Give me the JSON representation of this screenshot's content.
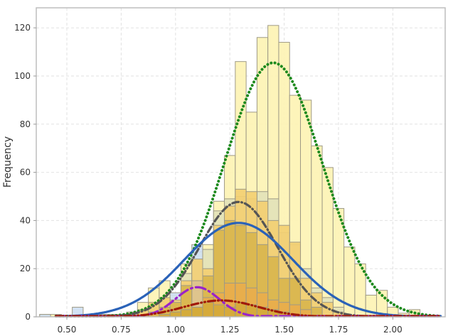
{
  "chart_data": {
    "type": "bar",
    "subtype": "overlaid histogram with fitted normal curves",
    "title": "",
    "xlabel": "",
    "ylabel": "Frequency",
    "xlim": [
      0.36,
      2.24
    ],
    "ylim": [
      0,
      128
    ],
    "x_ticks": [
      "0.50",
      "0.75",
      "1.00",
      "1.25",
      "1.50",
      "1.75",
      "2.00"
    ],
    "y_ticks": [
      "0",
      "20",
      "40",
      "60",
      "80",
      "100",
      "120"
    ],
    "grid": true,
    "legend": "none",
    "bin_width": 0.05,
    "histograms": [
      {
        "name": "group_pale_yellow",
        "color": "#fdf3b4",
        "bins": [
          {
            "x": 0.4,
            "y": 1
          },
          {
            "x": 0.45,
            "y": 1
          },
          {
            "x": 0.6,
            "y": 1
          },
          {
            "x": 0.65,
            "y": 1
          },
          {
            "x": 0.7,
            "y": 1
          },
          {
            "x": 0.75,
            "y": 1
          },
          {
            "x": 0.8,
            "y": 2
          },
          {
            "x": 0.85,
            "y": 6
          },
          {
            "x": 0.9,
            "y": 12
          },
          {
            "x": 0.95,
            "y": 15
          },
          {
            "x": 1.0,
            "y": 9
          },
          {
            "x": 1.05,
            "y": 22
          },
          {
            "x": 1.1,
            "y": 27
          },
          {
            "x": 1.15,
            "y": 30
          },
          {
            "x": 1.2,
            "y": 48
          },
          {
            "x": 1.25,
            "y": 67
          },
          {
            "x": 1.3,
            "y": 106
          },
          {
            "x": 1.35,
            "y": 85
          },
          {
            "x": 1.4,
            "y": 116
          },
          {
            "x": 1.45,
            "y": 121
          },
          {
            "x": 1.5,
            "y": 114
          },
          {
            "x": 1.55,
            "y": 92
          },
          {
            "x": 1.6,
            "y": 90
          },
          {
            "x": 1.65,
            "y": 71
          },
          {
            "x": 1.7,
            "y": 62
          },
          {
            "x": 1.75,
            "y": 45
          },
          {
            "x": 1.8,
            "y": 29
          },
          {
            "x": 1.85,
            "y": 22
          },
          {
            "x": 1.9,
            "y": 9
          },
          {
            "x": 1.95,
            "y": 11
          },
          {
            "x": 2.0,
            "y": 4
          },
          {
            "x": 2.05,
            "y": 1.5
          },
          {
            "x": 2.1,
            "y": 3
          }
        ]
      },
      {
        "name": "group_light_blue",
        "color": "#cfe0f3",
        "bins": [
          {
            "x": 0.4,
            "y": 1
          },
          {
            "x": 0.55,
            "y": 4
          },
          {
            "x": 0.7,
            "y": 1
          },
          {
            "x": 1.0,
            "y": 10
          },
          {
            "x": 1.1,
            "y": 30
          }
        ]
      },
      {
        "name": "group_sage",
        "color": "#e3e2b8",
        "bins": [
          {
            "x": 1.05,
            "y": 18
          },
          {
            "x": 1.15,
            "y": 28
          },
          {
            "x": 1.2,
            "y": 44
          },
          {
            "x": 1.25,
            "y": 49
          },
          {
            "x": 1.3,
            "y": 50
          },
          {
            "x": 1.35,
            "y": 49
          },
          {
            "x": 1.4,
            "y": 52
          },
          {
            "x": 1.45,
            "y": 49
          },
          {
            "x": 1.5,
            "y": 35
          },
          {
            "x": 1.55,
            "y": 30
          },
          {
            "x": 1.6,
            "y": 20
          },
          {
            "x": 1.65,
            "y": 12
          },
          {
            "x": 1.7,
            "y": 8
          },
          {
            "x": 1.75,
            "y": 4
          }
        ]
      },
      {
        "name": "group_gold",
        "color": "#f3cf72",
        "bins": [
          {
            "x": 0.85,
            "y": 3
          },
          {
            "x": 0.9,
            "y": 6
          },
          {
            "x": 0.95,
            "y": 8
          },
          {
            "x": 1.0,
            "y": 7
          },
          {
            "x": 1.05,
            "y": 15
          },
          {
            "x": 1.1,
            "y": 24
          },
          {
            "x": 1.15,
            "y": 20
          },
          {
            "x": 1.2,
            "y": 38
          },
          {
            "x": 1.25,
            "y": 46
          },
          {
            "x": 1.3,
            "y": 53
          },
          {
            "x": 1.35,
            "y": 52
          },
          {
            "x": 1.4,
            "y": 48
          },
          {
            "x": 1.45,
            "y": 40
          },
          {
            "x": 1.5,
            "y": 38
          },
          {
            "x": 1.55,
            "y": 31
          },
          {
            "x": 1.6,
            "y": 16
          },
          {
            "x": 1.65,
            "y": 10
          },
          {
            "x": 1.7,
            "y": 6
          },
          {
            "x": 1.75,
            "y": 2
          }
        ]
      },
      {
        "name": "group_tan",
        "color": "#dcc28e",
        "bins": [
          {
            "x": 1.1,
            "y": 15
          }
        ]
      },
      {
        "name": "group_olive_gold",
        "color": "#d9b54e",
        "bins": [
          {
            "x": 0.9,
            "y": 2
          },
          {
            "x": 0.95,
            "y": 4
          },
          {
            "x": 1.0,
            "y": 6
          },
          {
            "x": 1.05,
            "y": 13
          },
          {
            "x": 1.1,
            "y": 4
          },
          {
            "x": 1.15,
            "y": 17
          },
          {
            "x": 1.2,
            "y": 36
          },
          {
            "x": 1.25,
            "y": 40
          },
          {
            "x": 1.3,
            "y": 38
          },
          {
            "x": 1.35,
            "y": 35
          },
          {
            "x": 1.4,
            "y": 30
          },
          {
            "x": 1.45,
            "y": 25
          },
          {
            "x": 1.5,
            "y": 16
          },
          {
            "x": 1.55,
            "y": 16
          },
          {
            "x": 1.6,
            "y": 7
          },
          {
            "x": 1.65,
            "y": 4
          }
        ]
      },
      {
        "name": "group_orange",
        "color": "#e9ad4c",
        "bins": [
          {
            "x": 1.15,
            "y": 8
          },
          {
            "x": 1.2,
            "y": 10
          },
          {
            "x": 1.25,
            "y": 14
          },
          {
            "x": 1.3,
            "y": 14
          },
          {
            "x": 1.35,
            "y": 12
          },
          {
            "x": 1.4,
            "y": 10
          },
          {
            "x": 1.45,
            "y": 7
          },
          {
            "x": 1.5,
            "y": 6
          },
          {
            "x": 1.55,
            "y": 5
          },
          {
            "x": 1.6,
            "y": 3
          }
        ]
      },
      {
        "name": "group_dark_gold",
        "color": "#d4a93a",
        "bins": [
          {
            "x": 0.95,
            "y": 1
          },
          {
            "x": 1.0,
            "y": 2
          },
          {
            "x": 1.05,
            "y": 3
          },
          {
            "x": 1.1,
            "y": 4
          },
          {
            "x": 1.15,
            "y": 6
          },
          {
            "x": 1.2,
            "y": 5
          },
          {
            "x": 1.25,
            "y": 4
          },
          {
            "x": 1.3,
            "y": 6
          },
          {
            "x": 1.35,
            "y": 5
          },
          {
            "x": 1.4,
            "y": 4
          },
          {
            "x": 1.45,
            "y": 3
          },
          {
            "x": 1.5,
            "y": 2
          }
        ]
      }
    ],
    "fitted_curves": [
      {
        "name": "fit_green_dotted",
        "color": "#1e8a1e",
        "style": "dotted",
        "mean": 1.45,
        "sd": 0.225,
        "peak": 105.5
      },
      {
        "name": "fit_gray_dashdot",
        "color": "#555555",
        "style": "dash-dot",
        "mean": 1.29,
        "sd": 0.18,
        "peak": 47.7
      },
      {
        "name": "fit_blue_solid",
        "color": "#2a62b8",
        "style": "solid",
        "mean": 1.29,
        "sd": 0.25,
        "peak": 39.0
      },
      {
        "name": "fit_purple_dashdot",
        "color": "#9a22c9",
        "style": "long-dash-dot",
        "mean": 1.1,
        "sd": 0.1,
        "peak": 12.3
      },
      {
        "name": "fit_darkred_dashdotdot",
        "color": "#a01a0a",
        "style": "dash-dot-dot",
        "mean": 1.21,
        "sd": 0.17,
        "peak": 6.8
      }
    ]
  },
  "axes": {
    "y_title": "Frequency"
  }
}
